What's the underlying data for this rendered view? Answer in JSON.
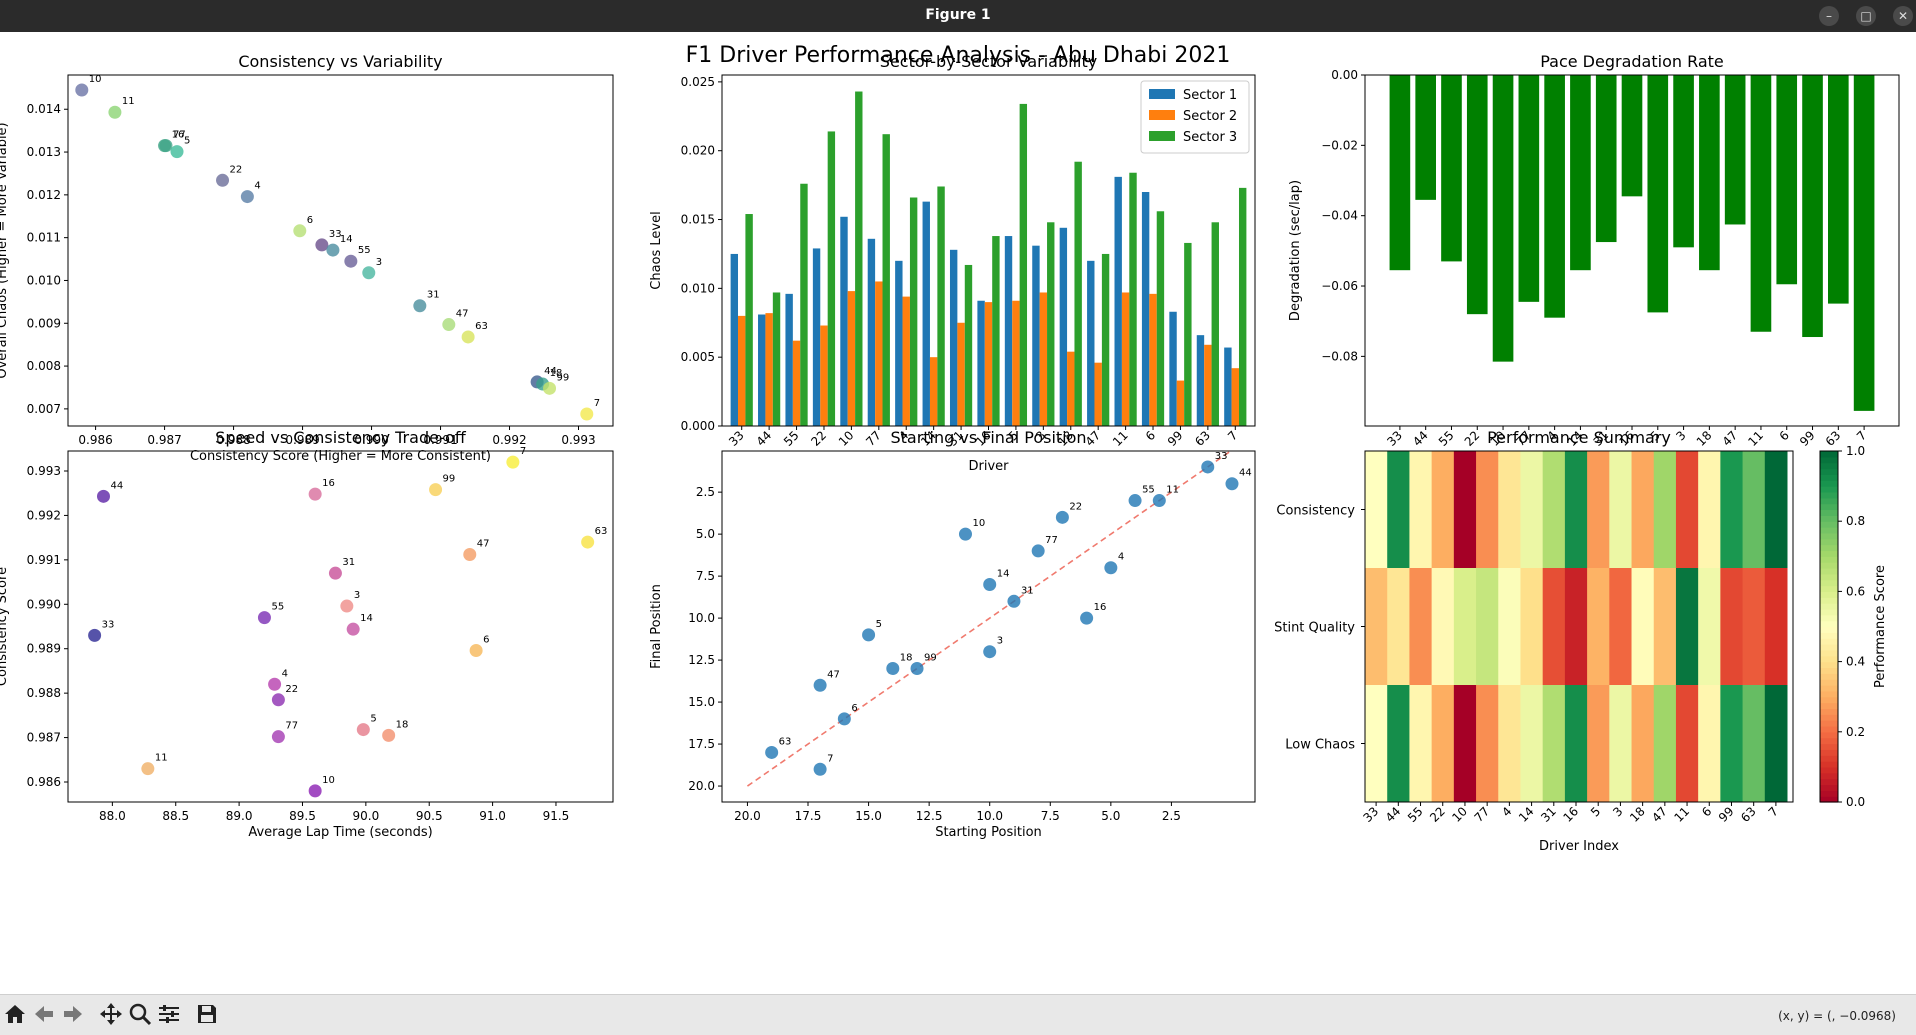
{
  "window": {
    "title": "Figure 1"
  },
  "figure": {
    "suptitle": "F1 Driver Performance Analysis - Abu Dhabi 2021"
  },
  "status": {
    "coords": "(x, y) = (, −0.0968)"
  },
  "toolbar": [
    "home-icon",
    "back-icon",
    "forward-icon",
    "pan-icon",
    "zoom-icon",
    "configure-icon",
    "save-icon"
  ],
  "chart_data": [
    {
      "id": "consistency_vs_variability",
      "type": "scatter",
      "title": "Consistency vs Variability",
      "xlabel": "Consistency Score (Higher = More Consistent)",
      "ylabel": "Overall Chaos (Higher = More Variable)",
      "xlim": [
        0.9856,
        0.9935
      ],
      "ylim": [
        0.0066,
        0.0148
      ],
      "xticks": [
        "0.986",
        "0.987",
        "0.988",
        "0.989",
        "0.990",
        "0.991",
        "0.992",
        "0.993"
      ],
      "yticks": [
        "0.007",
        "0.008",
        "0.009",
        "0.010",
        "0.011",
        "0.012",
        "0.013",
        "0.014"
      ],
      "points": [
        {
          "label": "10",
          "x": 0.9858,
          "y": 0.01445,
          "color": "#6b74a6"
        },
        {
          "label": "11",
          "x": 0.98628,
          "y": 0.01393,
          "color": "#8cd474"
        },
        {
          "label": "16",
          "x": 0.987,
          "y": 0.01315,
          "color": "#3aa383"
        },
        {
          "label": "77",
          "x": 0.98702,
          "y": 0.01315,
          "color": "#42a68a"
        },
        {
          "label": "5",
          "x": 0.98718,
          "y": 0.01301,
          "color": "#3dbb9a"
        },
        {
          "label": "22",
          "x": 0.98784,
          "y": 0.01234,
          "color": "#6b6e9a"
        },
        {
          "label": "4",
          "x": 0.9882,
          "y": 0.01196,
          "color": "#5a7ea6"
        },
        {
          "label": "6",
          "x": 0.98896,
          "y": 0.01116,
          "color": "#b6e075"
        },
        {
          "label": "33",
          "x": 0.98928,
          "y": 0.01083,
          "color": "#6a4f8c"
        },
        {
          "label": "14",
          "x": 0.98944,
          "y": 0.01071,
          "color": "#4b8da0"
        },
        {
          "label": "55",
          "x": 0.9897,
          "y": 0.01045,
          "color": "#6a6098"
        },
        {
          "label": "3",
          "x": 0.98996,
          "y": 0.01018,
          "color": "#4ab7a0"
        },
        {
          "label": "31",
          "x": 0.9907,
          "y": 0.00941,
          "color": "#4a8e9e"
        },
        {
          "label": "47",
          "x": 0.99112,
          "y": 0.00897,
          "color": "#a9dc79"
        },
        {
          "label": "63",
          "x": 0.9914,
          "y": 0.00868,
          "color": "#d8e45c"
        },
        {
          "label": "44",
          "x": 0.9924,
          "y": 0.00763,
          "color": "#3b5c8e"
        },
        {
          "label": "18",
          "x": 0.99248,
          "y": 0.00758,
          "color": "#38a08c"
        },
        {
          "label": "99",
          "x": 0.99258,
          "y": 0.00748,
          "color": "#c4e26b"
        },
        {
          "label": "7",
          "x": 0.99312,
          "y": 0.00688,
          "color": "#f2e84e"
        }
      ]
    },
    {
      "id": "sector_variability",
      "type": "bar",
      "title": "Sector-by-Sector Variability",
      "xlabel": "Driver",
      "ylabel": "Chaos Level",
      "ylim": [
        0,
        0.0255
      ],
      "yticks": [
        "0.000",
        "0.005",
        "0.010",
        "0.015",
        "0.020",
        "0.025"
      ],
      "categories": [
        "33",
        "44",
        "55",
        "22",
        "10",
        "77",
        "4",
        "14",
        "31",
        "16",
        "5",
        "3",
        "18",
        "47",
        "11",
        "6",
        "99",
        "63",
        "7"
      ],
      "series": [
        {
          "name": "Sector 1",
          "color": "#1f77b4",
          "values": [
            0.0125,
            0.0081,
            0.0096,
            0.0129,
            0.0152,
            0.0136,
            0.012,
            0.0163,
            0.0128,
            0.0091,
            0.0138,
            0.0131,
            0.0144,
            0.012,
            0.0181,
            0.017,
            0.0083,
            0.0066,
            0.0057
          ]
        },
        {
          "name": "Sector 2",
          "color": "#ff7f0e",
          "values": [
            0.008,
            0.0082,
            0.0062,
            0.0073,
            0.0098,
            0.0105,
            0.0094,
            0.005,
            0.0075,
            0.009,
            0.0091,
            0.0097,
            0.0054,
            0.0046,
            0.0097,
            0.0096,
            0.0033,
            0.0059,
            0.0042
          ]
        },
        {
          "name": "Sector 3",
          "color": "#2ca02c",
          "values": [
            0.0154,
            0.0097,
            0.0176,
            0.0214,
            0.0243,
            0.0212,
            0.0166,
            0.0174,
            0.0117,
            0.0138,
            0.0234,
            0.0148,
            0.0192,
            0.0125,
            0.0184,
            0.0156,
            0.0133,
            0.0148,
            0.0173
          ]
        }
      ]
    },
    {
      "id": "pace_degradation",
      "type": "bar",
      "title": "Pace Degradation Rate",
      "xlabel": "Driver Index",
      "ylabel": "Degradation (sec/lap)",
      "ylim": [
        -0.0998,
        0.0
      ],
      "yticks": [
        "0.00",
        "−0.02",
        "−0.04",
        "−0.06",
        "−0.08"
      ],
      "categories": [
        "33",
        "44",
        "55",
        "22",
        "10",
        "77",
        "4",
        "14",
        "31",
        "16",
        "5",
        "3",
        "18",
        "47",
        "11",
        "6",
        "99",
        "63",
        "7"
      ],
      "color": "#008000",
      "values": [
        -0.0555,
        -0.0355,
        -0.053,
        -0.068,
        -0.0815,
        -0.0645,
        -0.069,
        -0.0555,
        -0.0475,
        -0.0345,
        -0.0675,
        -0.049,
        -0.0555,
        -0.0425,
        -0.073,
        -0.0595,
        -0.0745,
        -0.065,
        -0.0955
      ]
    },
    {
      "id": "speed_vs_consistency",
      "type": "scatter",
      "title": "Speed vs Consistency Trade-off",
      "xlabel": "Average Lap Time (seconds)",
      "ylabel": "Consistency Score",
      "xlim": [
        87.65,
        91.95
      ],
      "ylim": [
        0.98555,
        0.99345
      ],
      "xticks": [
        "88.0",
        "88.5",
        "89.0",
        "89.5",
        "90.0",
        "90.5",
        "91.0",
        "91.5"
      ],
      "yticks": [
        "0.986",
        "0.987",
        "0.988",
        "0.989",
        "0.990",
        "0.991",
        "0.992",
        "0.993"
      ],
      "points": [
        {
          "label": "44",
          "x": 87.93,
          "y": 0.99243,
          "color": "#5c24a6"
        },
        {
          "label": "33",
          "x": 87.86,
          "y": 0.9893,
          "color": "#2c2894"
        },
        {
          "label": "11",
          "x": 88.28,
          "y": 0.9863,
          "color": "#f0b068"
        },
        {
          "label": "55",
          "x": 89.2,
          "y": 0.9897,
          "color": "#7a2eb4"
        },
        {
          "label": "4",
          "x": 89.28,
          "y": 0.9882,
          "color": "#b73fae"
        },
        {
          "label": "22",
          "x": 89.31,
          "y": 0.98785,
          "color": "#8d2fb2"
        },
        {
          "label": "77",
          "x": 89.31,
          "y": 0.98702,
          "color": "#a43bb3"
        },
        {
          "label": "16",
          "x": 89.6,
          "y": 0.99248,
          "color": "#d86e9c"
        },
        {
          "label": "10",
          "x": 89.6,
          "y": 0.9858,
          "color": "#8b1fb3"
        },
        {
          "label": "31",
          "x": 89.76,
          "y": 0.9907,
          "color": "#c85098"
        },
        {
          "label": "3",
          "x": 89.85,
          "y": 0.98996,
          "color": "#ef8c88"
        },
        {
          "label": "14",
          "x": 89.9,
          "y": 0.98944,
          "color": "#c552a2"
        },
        {
          "label": "5",
          "x": 89.98,
          "y": 0.98718,
          "color": "#e57a8a"
        },
        {
          "label": "18",
          "x": 90.18,
          "y": 0.98705,
          "color": "#f2906e"
        },
        {
          "label": "99",
          "x": 90.55,
          "y": 0.99258,
          "color": "#f7cf58"
        },
        {
          "label": "47",
          "x": 90.82,
          "y": 0.99112,
          "color": "#f49c64"
        },
        {
          "label": "6",
          "x": 90.87,
          "y": 0.98896,
          "color": "#f6b85a"
        },
        {
          "label": "7",
          "x": 91.16,
          "y": 0.9932,
          "color": "#f8ee3a"
        },
        {
          "label": "63",
          "x": 91.75,
          "y": 0.9914,
          "color": "#f7e244"
        }
      ]
    },
    {
      "id": "starting_vs_final",
      "type": "scatter",
      "title": "Starting vs Final Position",
      "xlabel": "Starting Position",
      "ylabel": "Final Position",
      "xlim": [
        21.05,
        -0.95
      ],
      "ylim": [
        20.95,
        0.05
      ],
      "xticks": [
        "20.0",
        "17.5",
        "15.0",
        "12.5",
        "10.0",
        "7.5",
        "5.0",
        "2.5"
      ],
      "yticks": [
        "2.5",
        "5.0",
        "7.5",
        "10.0",
        "12.5",
        "15.0",
        "17.5",
        "20.0"
      ],
      "color": "#1f77b4",
      "reference_line": [
        [
          20,
          20
        ],
        [
          0,
          0
        ]
      ],
      "points": [
        {
          "label": "33",
          "x": 1.0,
          "y": 1.0
        },
        {
          "label": "44",
          "x": 0.0,
          "y": 2.0
        },
        {
          "label": "55",
          "x": 4.0,
          "y": 3.0
        },
        {
          "label": "11",
          "x": 3.0,
          "y": 3.0
        },
        {
          "label": "22",
          "x": 7.0,
          "y": 4.0
        },
        {
          "label": "10",
          "x": 11.0,
          "y": 5.0
        },
        {
          "label": "77",
          "x": 8.0,
          "y": 6.0
        },
        {
          "label": "4",
          "x": 5.0,
          "y": 7.0
        },
        {
          "label": "14",
          "x": 10.0,
          "y": 8.0
        },
        {
          "label": "31",
          "x": 9.0,
          "y": 9.0
        },
        {
          "label": "16",
          "x": 6.0,
          "y": 10.0
        },
        {
          "label": "5",
          "x": 15.0,
          "y": 11.0
        },
        {
          "label": "3",
          "x": 10.0,
          "y": 12.0
        },
        {
          "label": "18",
          "x": 14.0,
          "y": 13.0
        },
        {
          "label": "99",
          "x": 13.0,
          "y": 13.0
        },
        {
          "label": "47",
          "x": 17.0,
          "y": 14.0
        },
        {
          "label": "6",
          "x": 16.0,
          "y": 16.0
        },
        {
          "label": "63",
          "x": 19.0,
          "y": 18.0
        },
        {
          "label": "7",
          "x": 17.0,
          "y": 19.0
        }
      ]
    },
    {
      "id": "performance_summary",
      "type": "heatmap",
      "title": "Performance Summary",
      "xlabel": "Driver Index",
      "colorbar_label": "Performance Score",
      "colorbar_ticks": [
        "0.0",
        "0.2",
        "0.4",
        "0.6",
        "0.8",
        "1.0"
      ],
      "columns": [
        "33",
        "44",
        "55",
        "22",
        "10",
        "77",
        "4",
        "14",
        "31",
        "16",
        "5",
        "3",
        "18",
        "47",
        "11",
        "6",
        "99",
        "63",
        "7"
      ],
      "rows": [
        "Consistency",
        "Stint Quality",
        "Low Chaos"
      ],
      "values": [
        [
          0.5,
          0.92,
          0.47,
          0.3,
          0.0,
          0.25,
          0.42,
          0.55,
          0.68,
          0.92,
          0.27,
          0.55,
          0.29,
          0.71,
          0.14,
          0.47,
          0.9,
          0.8,
          1.0
        ],
        [
          0.33,
          0.42,
          0.25,
          0.48,
          0.6,
          0.64,
          0.51,
          0.4,
          0.15,
          0.07,
          0.31,
          0.19,
          0.49,
          0.33,
          0.97,
          0.54,
          0.14,
          0.17,
          0.1
        ],
        [
          0.5,
          0.92,
          0.47,
          0.3,
          0.0,
          0.25,
          0.42,
          0.55,
          0.68,
          0.92,
          0.27,
          0.55,
          0.29,
          0.71,
          0.14,
          0.47,
          0.9,
          0.8,
          1.0
        ]
      ]
    }
  ]
}
